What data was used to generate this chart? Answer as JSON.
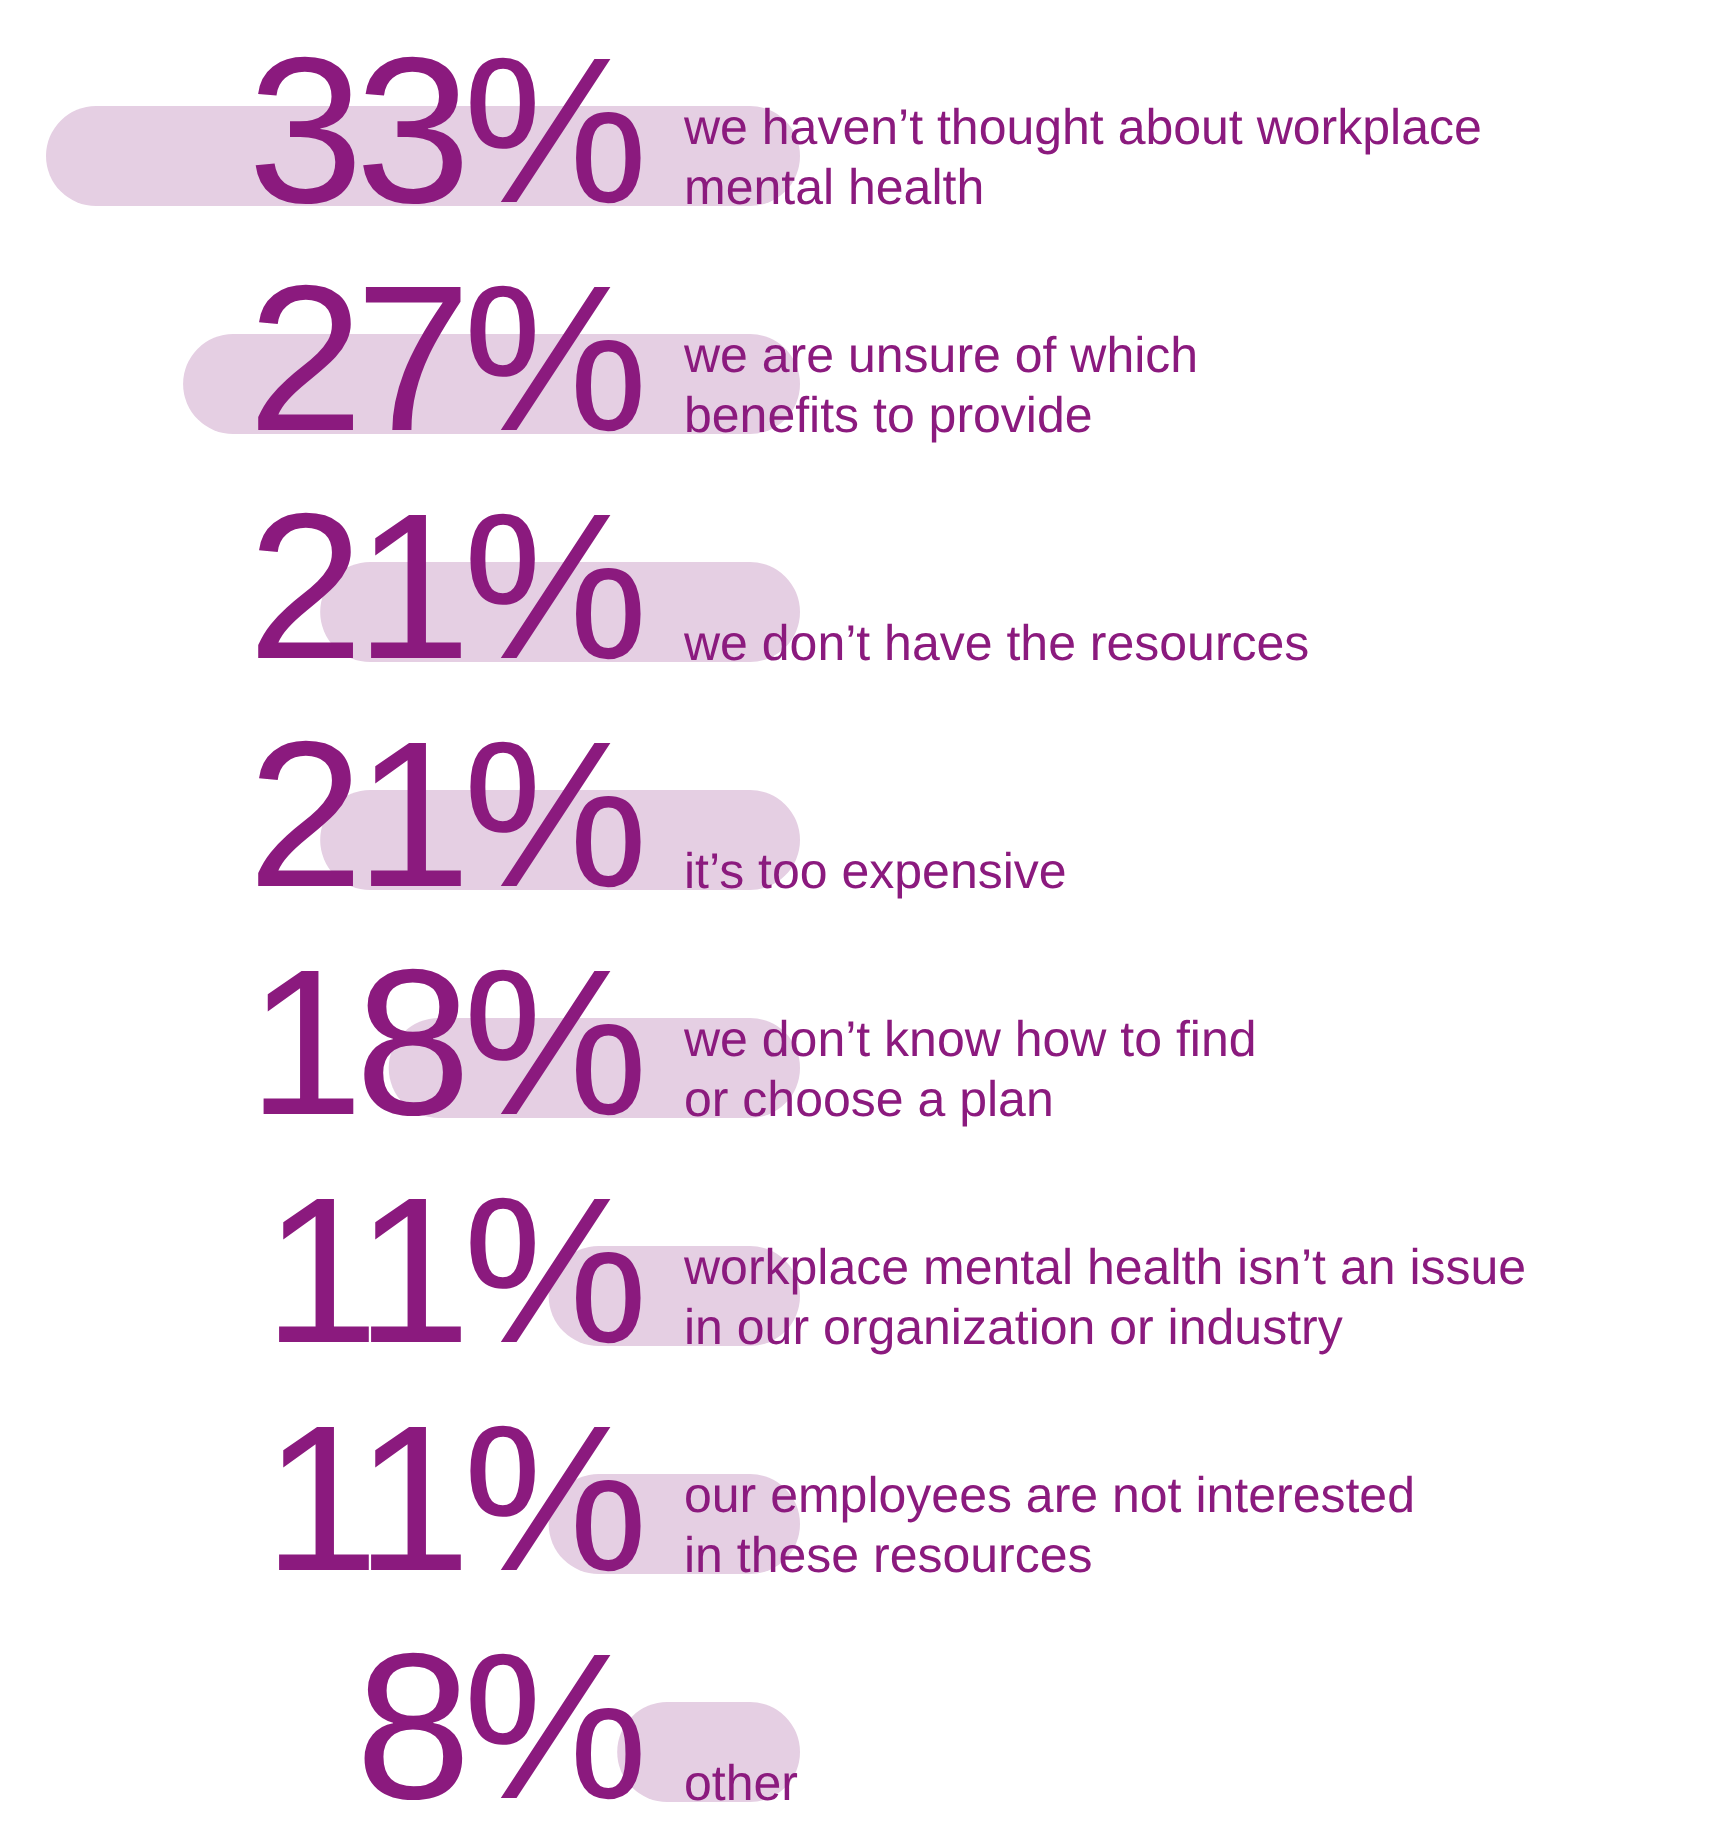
{
  "chart_data": {
    "type": "bar",
    "orientation": "horizontal",
    "data_labels": true,
    "color": "#e5cfe3",
    "categories": [
      "we haven’t thought about workplace\nmental health",
      "we are unsure of which\nbenefits to provide",
      "we don’t have the resources",
      "it’s too expensive",
      "we don’t know how to find\nor choose a plan",
      "workplace mental health isn’t an issue\nin our organization or industry",
      "our employees are not interested\nin these resources",
      "other"
    ],
    "values": [
      33,
      27,
      21,
      21,
      18,
      11,
      11,
      8
    ],
    "value_labels": [
      "33%",
      "27%",
      "21%",
      "21%",
      "18%",
      "11%",
      "11%",
      "8%"
    ]
  }
}
